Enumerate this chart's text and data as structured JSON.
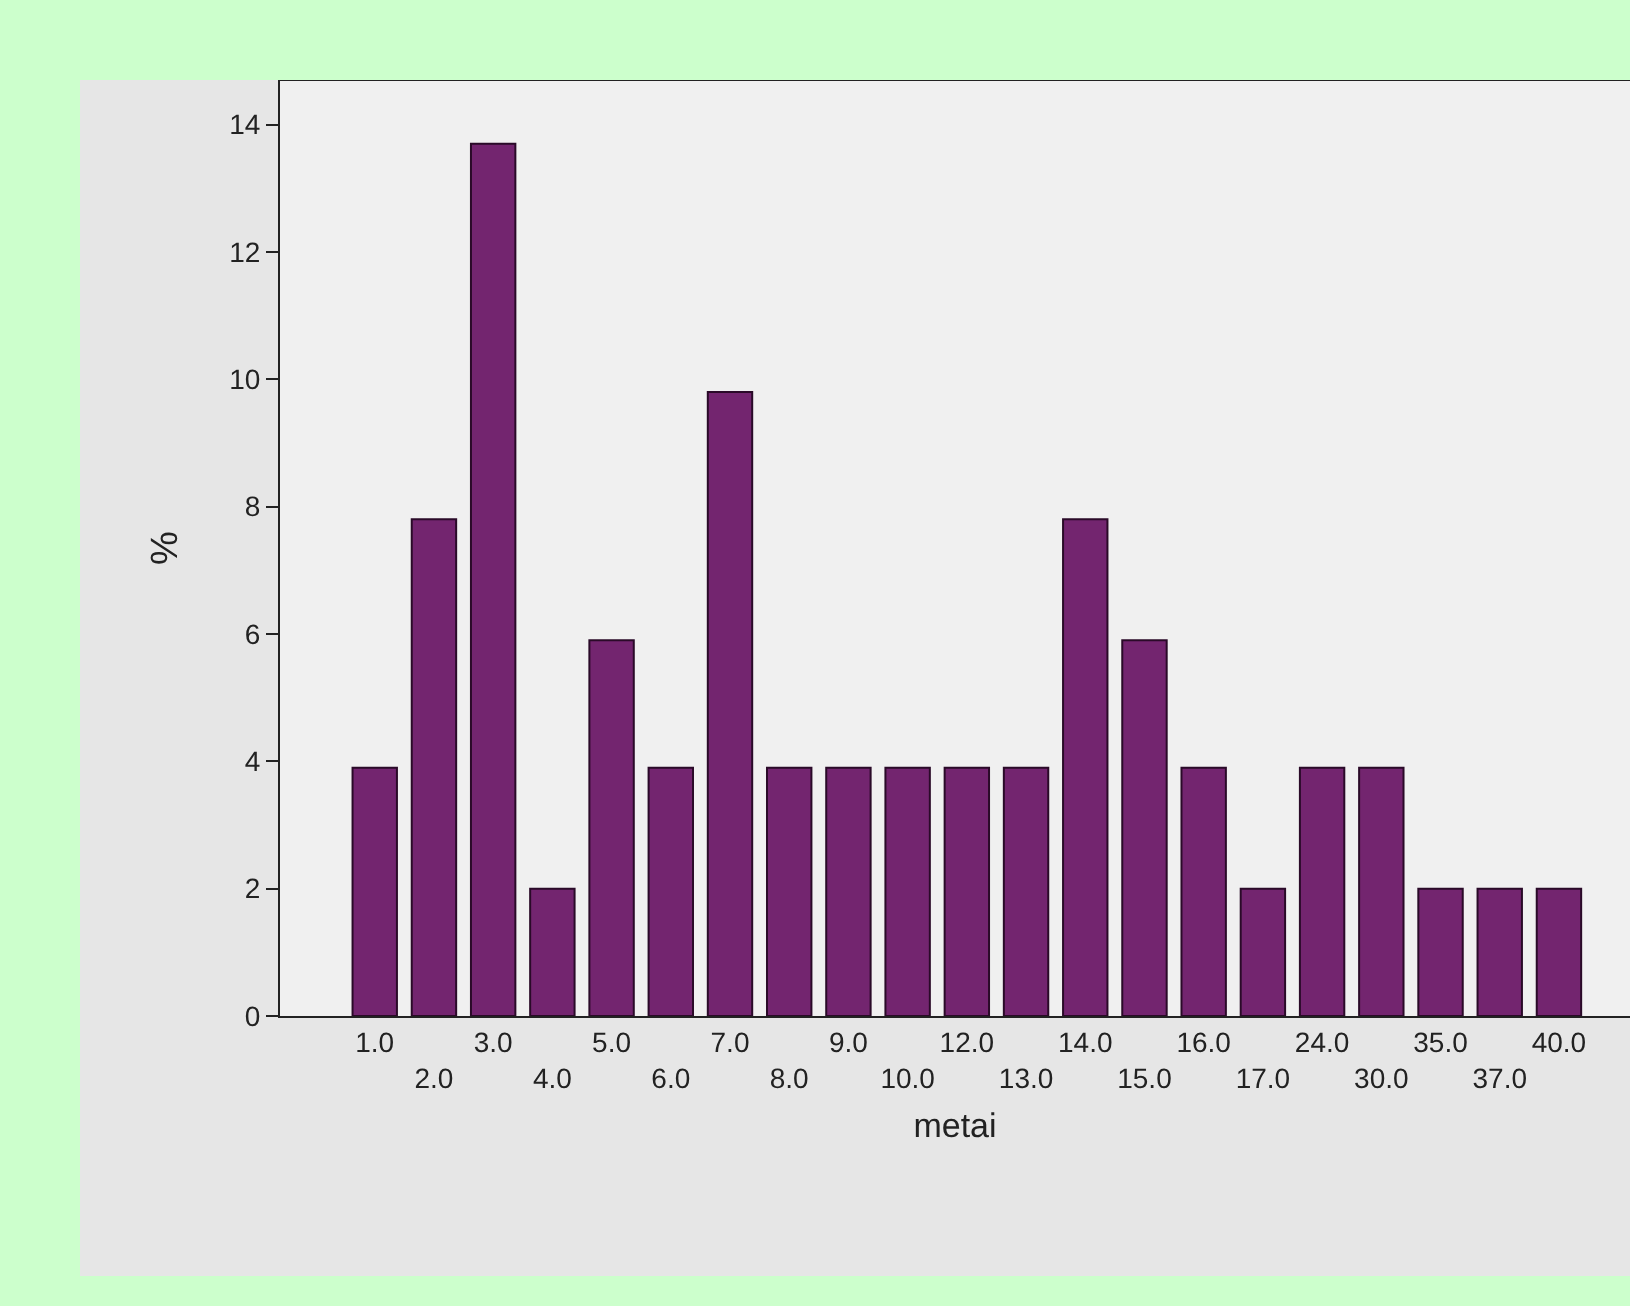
{
  "chart_data": {
    "type": "bar",
    "xlabel": "metai",
    "ylabel": "%",
    "categories": [
      "1.0",
      "2.0",
      "3.0",
      "4.0",
      "5.0",
      "6.0",
      "7.0",
      "8.0",
      "9.0",
      "10.0",
      "12.0",
      "13.0",
      "14.0",
      "15.0",
      "16.0",
      "17.0",
      "24.0",
      "30.0",
      "35.0",
      "37.0",
      "40.0"
    ],
    "values": [
      3.9,
      7.8,
      13.7,
      2.0,
      5.9,
      3.9,
      9.8,
      3.9,
      3.9,
      3.9,
      3.9,
      3.9,
      7.8,
      5.9,
      3.9,
      2.0,
      3.9,
      3.9,
      2.0,
      2.0,
      2.0
    ],
    "color": "#73256f",
    "ylim": [
      0,
      14.7
    ],
    "yticks": [
      0,
      2,
      4,
      6,
      8,
      10,
      12,
      14
    ],
    "grid": false,
    "legend": false
  }
}
